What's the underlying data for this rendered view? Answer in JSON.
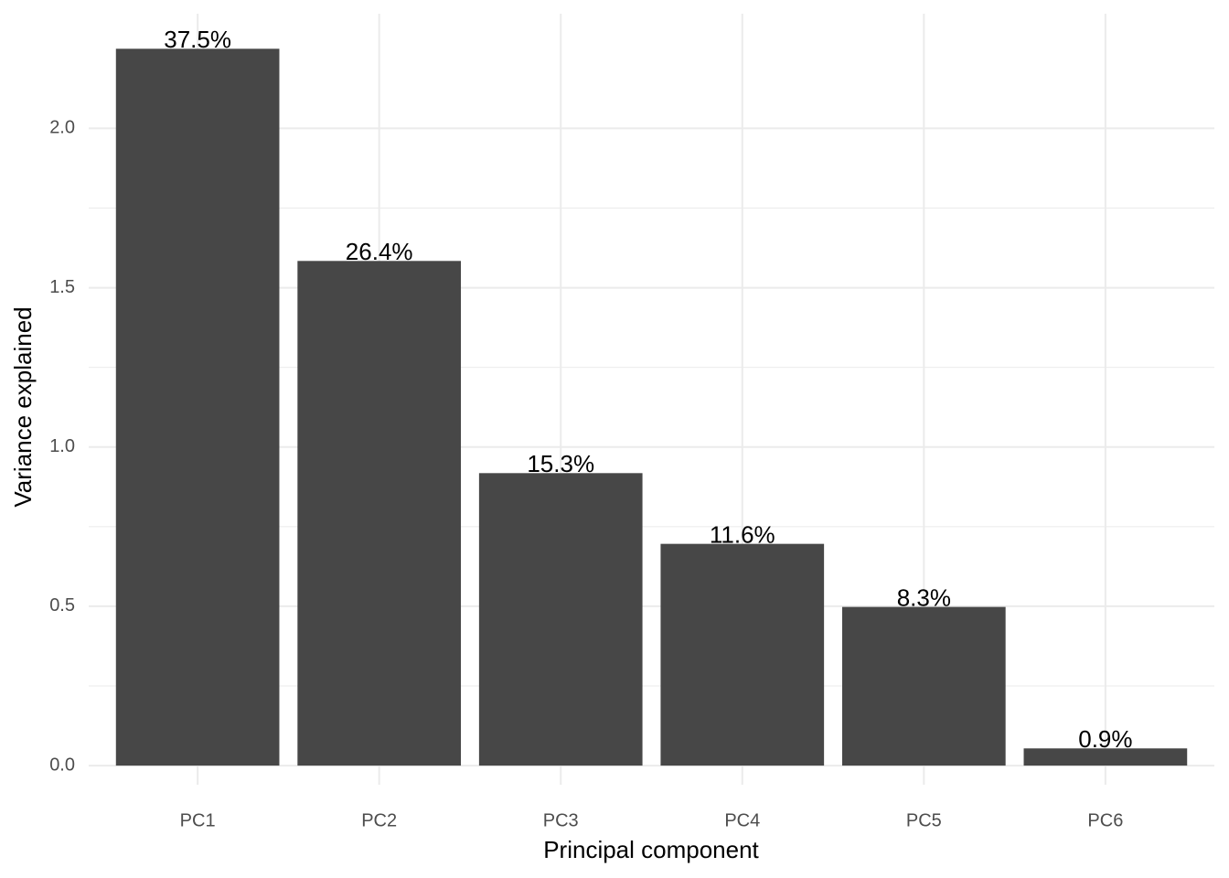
{
  "chart_data": {
    "type": "bar",
    "x_label": "Principal component",
    "y_label": "Variance explained",
    "categories": [
      "PC1",
      "PC2",
      "PC3",
      "PC4",
      "PC5",
      "PC6"
    ],
    "values": [
      2.25,
      1.584,
      0.918,
      0.696,
      0.498,
      0.054
    ],
    "annotations": [
      "37.5%",
      "26.4%",
      "15.3%",
      "11.6%",
      "8.3%",
      "0.9%"
    ],
    "color": "#474747",
    "ylim": [
      -0.06,
      2.36
    ],
    "yticks": [
      {
        "value": 0,
        "label": "0.0"
      },
      0.5,
      {
        "value": 1,
        "label": "1.0"
      },
      1.5,
      {
        "value": 2,
        "label": "2.0"
      }
    ],
    "grid": true
  }
}
